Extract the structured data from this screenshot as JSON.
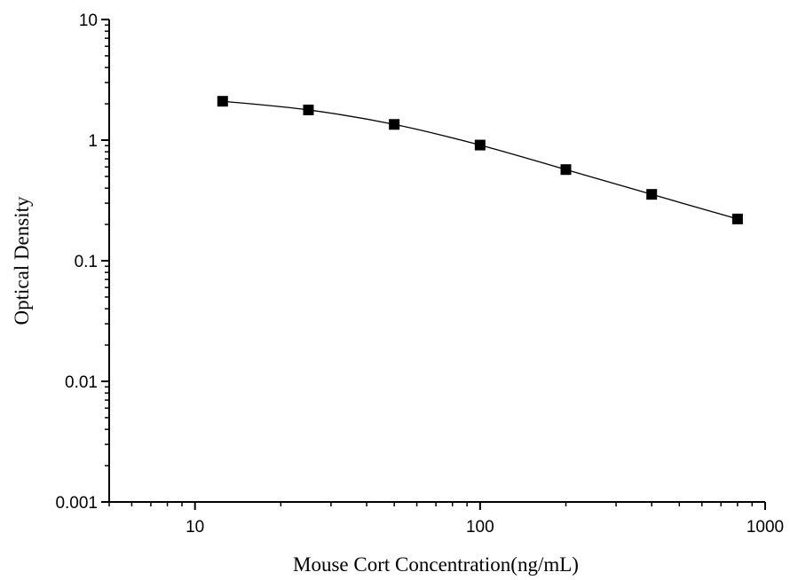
{
  "chart_data": {
    "type": "scatter",
    "xlabel": "Mouse Cort Concentration(ng/mL)",
    "ylabel": "Optical Density",
    "xscale": "log",
    "yscale": "log",
    "xlim": [
      5,
      1000
    ],
    "ylim": [
      0.001,
      10
    ],
    "x_ticks": [
      10,
      100,
      1000
    ],
    "x_tick_labels": [
      "10",
      "100",
      "1000"
    ],
    "y_ticks": [
      0.001,
      0.01,
      0.1,
      1,
      10
    ],
    "y_tick_labels": [
      "0.001",
      "0.01",
      "0.1",
      "1",
      "10"
    ],
    "grid": false,
    "series": [
      {
        "marker": "square",
        "fit_line": true,
        "color": "#000000",
        "x": [
          12.5,
          25,
          50,
          100,
          200,
          400,
          800
        ],
        "y": [
          2.1,
          1.78,
          1.35,
          0.91,
          0.57,
          0.355,
          0.222
        ]
      }
    ]
  }
}
